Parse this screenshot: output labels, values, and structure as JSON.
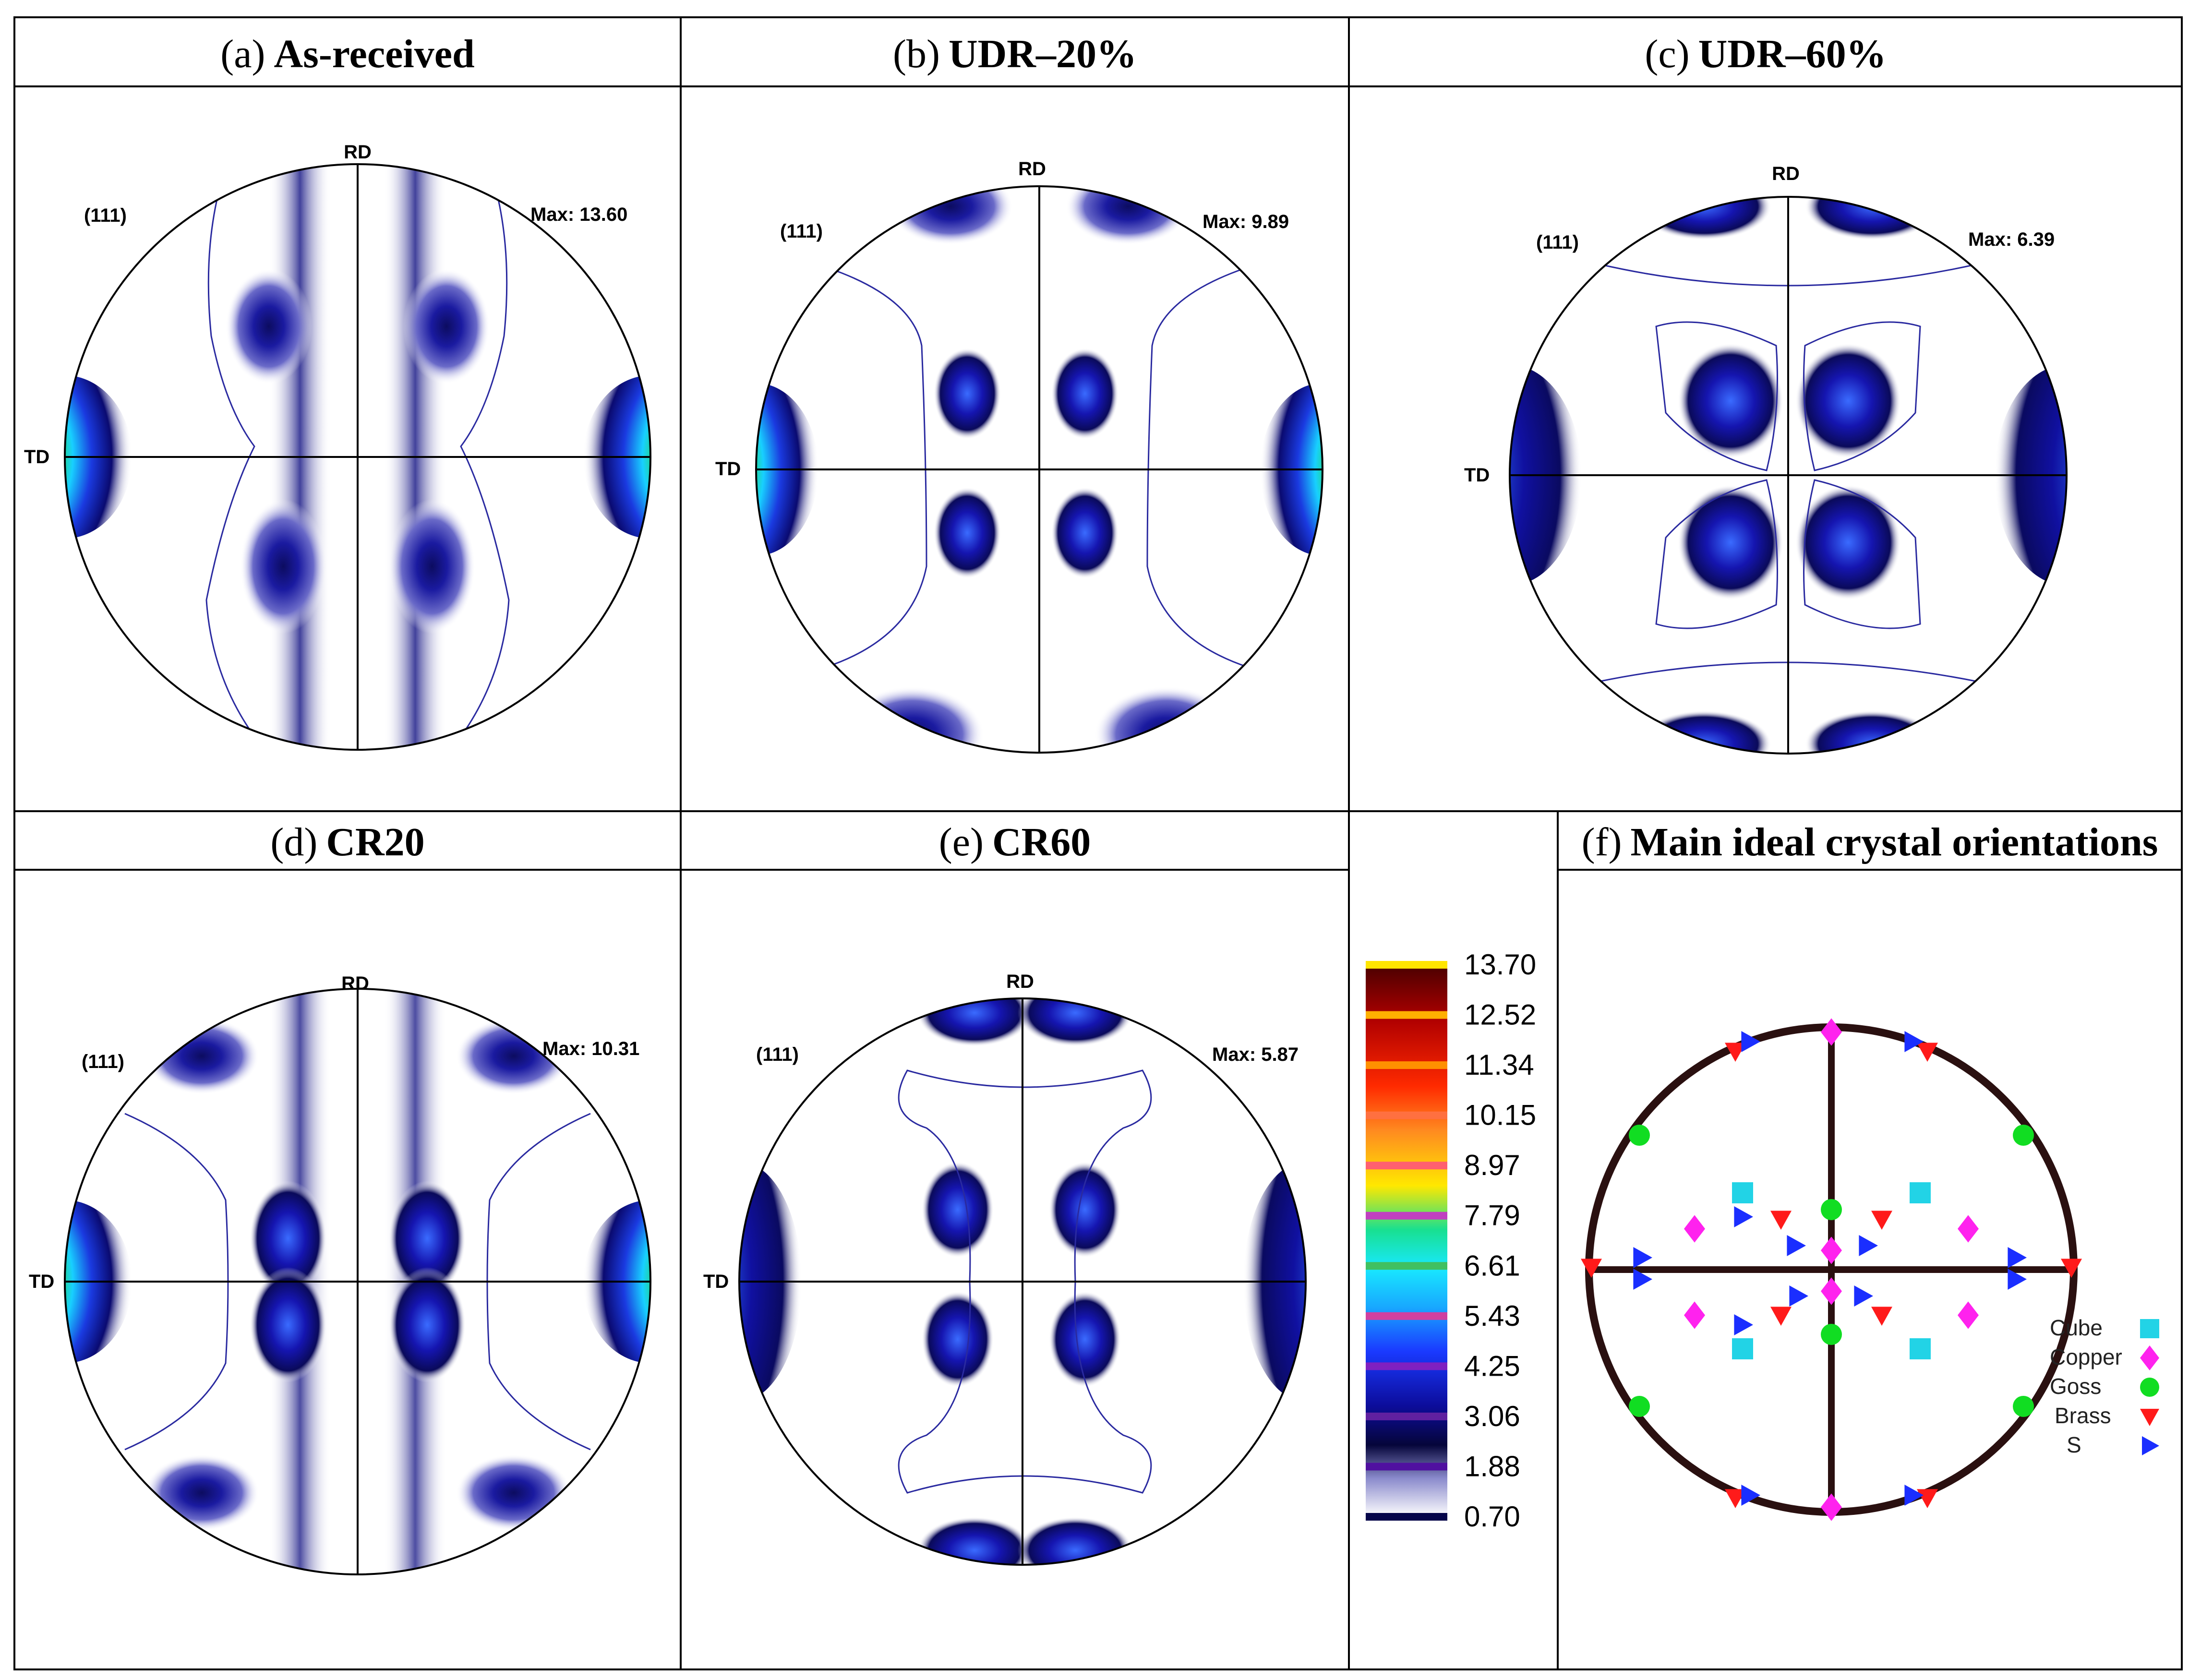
{
  "panels": [
    {
      "id": "a",
      "prefix": "(a)",
      "name": "As-received",
      "label_111": "(111)",
      "label_rd": "RD",
      "label_td": "TD",
      "max_text": "Max: 13.60"
    },
    {
      "id": "b",
      "prefix": "(b)",
      "name": "UDR–20%",
      "label_111": "(111)",
      "label_rd": "RD",
      "label_td": "TD",
      "max_text": "Max: 9.89"
    },
    {
      "id": "c",
      "prefix": "(c)",
      "name": "UDR–60%",
      "label_111": "(111)",
      "label_rd": "RD",
      "label_td": "TD",
      "max_text": "Max: 6.39"
    },
    {
      "id": "d",
      "prefix": "(d)",
      "name": "CR20",
      "label_111": "(111)",
      "label_rd": "RD",
      "label_td": "TD",
      "max_text": "Max: 10.31"
    },
    {
      "id": "e",
      "prefix": "(e)",
      "name": "CR60",
      "label_111": "(111)",
      "label_rd": "RD",
      "label_td": "TD",
      "max_text": "Max: 5.87"
    }
  ],
  "panel_f": {
    "prefix": "(f)",
    "name": "Main ideal crystal orientations"
  },
  "colorbar": {
    "levels": [
      "13.70",
      "12.52",
      "11.34",
      "10.15",
      "8.97",
      "7.79",
      "6.61",
      "5.43",
      "4.25",
      "3.06",
      "1.88",
      "0.70"
    ]
  },
  "legend": [
    {
      "name": "Cube",
      "color": "#22d3e6",
      "shape": "square"
    },
    {
      "name": "Copper",
      "color": "#ff22ee",
      "shape": "diamond"
    },
    {
      "name": "Goss",
      "color": "#11dd22",
      "shape": "circle"
    },
    {
      "name": "Brass",
      "color": "#ff1a1a",
      "shape": "triangle-down"
    },
    {
      "name": "S",
      "color": "#1a2eff",
      "shape": "triangle-right"
    }
  ],
  "colors": {
    "intensity_low": "#0a0a6e",
    "intensity_mid": "#1818c8",
    "contour_line": "#2a2aa0",
    "circle_line": "#2a1010"
  }
}
